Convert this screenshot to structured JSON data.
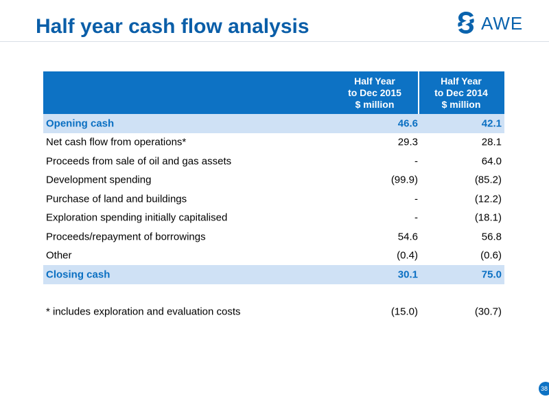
{
  "slide": {
    "title": "Half year cash flow analysis",
    "logo_text": "AWE",
    "page_number": "38"
  },
  "table": {
    "headers": [
      "",
      "Half Year\nto Dec 2015\n$ million",
      "Half Year\nto Dec 2014\n$ million"
    ],
    "header_lines": {
      "col1": [
        "Half Year",
        "to Dec 2015",
        "$ million"
      ],
      "col2": [
        "Half Year",
        "to Dec 2014",
        "$ million"
      ]
    },
    "rows": [
      {
        "label": "Opening cash",
        "v2015": "46.6",
        "v2014": "42.1",
        "highlight": true
      },
      {
        "label": "Net cash flow from operations*",
        "v2015": "29.3",
        "v2014": "28.1"
      },
      {
        "label": "Proceeds from sale of oil and gas assets",
        "v2015": "-",
        "v2014": "64.0"
      },
      {
        "label": "Development spending",
        "v2015": "(99.9)",
        "v2014": "(85.2)"
      },
      {
        "label": "Purchase of land and buildings",
        "v2015": "-",
        "v2014": "(12.2)"
      },
      {
        "label": "Exploration spending initially capitalised",
        "v2015": "-",
        "v2014": "(18.1)"
      },
      {
        "label": "Proceeds/repayment of borrowings",
        "v2015": "54.6",
        "v2014": "56.8"
      },
      {
        "label": "Other",
        "v2015": "(0.4)",
        "v2014": "(0.6)"
      },
      {
        "label": "Closing cash",
        "v2015": "30.1",
        "v2014": "75.0",
        "highlight": true
      }
    ],
    "footnote": {
      "label": "* includes exploration and evaluation costs",
      "v2015": "(15.0)",
      "v2014": "(30.7)"
    }
  },
  "colors": {
    "brand_blue": "#0a5ea8",
    "header_fill": "#0d72c4",
    "highlight_fill": "#cfe1f5",
    "highlight_text": "#0a6fc2"
  },
  "icons": {
    "logo": "awe-swirl-logo-icon"
  }
}
